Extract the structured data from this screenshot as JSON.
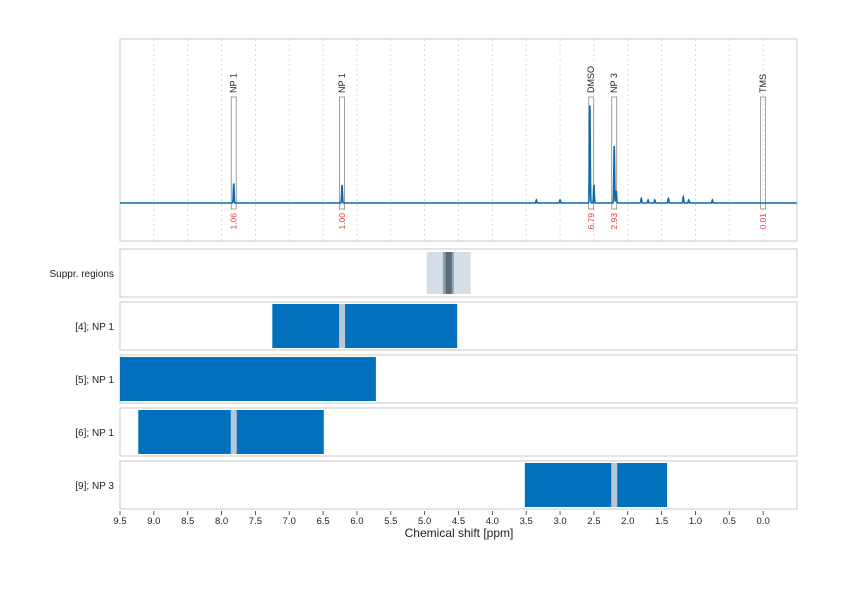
{
  "chart_data": {
    "type": "line",
    "title": "",
    "xlabel": "Chemical shift [ppm]",
    "ylabel": "",
    "xlim": [
      9.5,
      -0.5
    ],
    "x_ticks": [
      "9.5",
      "9.0",
      "8.5",
      "8.0",
      "7.5",
      "7.0",
      "6.5",
      "6.0",
      "5.5",
      "5.0",
      "4.5",
      "4.0",
      "3.5",
      "3.0",
      "2.5",
      "2.0",
      "1.5",
      "1.0",
      "0.5",
      "0.0"
    ],
    "grid": true,
    "spectrum": {
      "color": "#0b6aa9",
      "baseline": 0,
      "peaks": [
        {
          "x": 7.82,
          "height": 0.13
        },
        {
          "x": 6.22,
          "height": 0.12
        },
        {
          "x": 2.56,
          "height": 0.65
        },
        {
          "x": 2.5,
          "height": 0.12
        },
        {
          "x": 2.2,
          "height": 0.38
        },
        {
          "x": 2.17,
          "height": 0.08
        },
        {
          "x": 3.35,
          "height": 0.02
        },
        {
          "x": 3.0,
          "height": 0.02
        },
        {
          "x": 1.8,
          "height": 0.03
        },
        {
          "x": 1.7,
          "height": 0.02
        },
        {
          "x": 1.6,
          "height": 0.02
        },
        {
          "x": 1.4,
          "height": 0.03
        },
        {
          "x": 1.18,
          "height": 0.04
        },
        {
          "x": 1.1,
          "height": 0.02
        },
        {
          "x": 0.75,
          "height": 0.02
        }
      ]
    },
    "annotations": [
      {
        "label": "NP 1",
        "x": 7.82,
        "integral": "1.06"
      },
      {
        "label": "NP 1",
        "x": 6.22,
        "integral": "1.00"
      },
      {
        "label": "DMSO",
        "x": 2.54,
        "integral": "6.79"
      },
      {
        "label": "NP 3",
        "x": 2.2,
        "integral": "2.93"
      },
      {
        "label": "TMS",
        "x": 0.0,
        "integral": "0.01"
      }
    ],
    "annotation_color": "#e53935",
    "suppression": {
      "label": "Suppr. regions",
      "bands": [
        {
          "from": 4.97,
          "to": 4.32,
          "color": "#d5dee6"
        },
        {
          "from": 4.73,
          "to": 4.57,
          "color": "#8fa0ae"
        },
        {
          "from": 4.69,
          "to": 4.6,
          "color": "#5c6b78"
        }
      ]
    },
    "rows": [
      {
        "label": "[4]; NP 1",
        "from": 7.25,
        "to": 4.52,
        "marker": 6.22
      },
      {
        "label": "[5]; NP 1",
        "from": 9.5,
        "to": 5.72,
        "marker": null
      },
      {
        "label": "[6]; NP 1",
        "from": 9.23,
        "to": 6.49,
        "marker": 7.82
      },
      {
        "label": "[9]; NP 3",
        "from": 3.52,
        "to": 1.42,
        "marker": 2.2
      }
    ],
    "bar_color": "#0271bd",
    "marker_color": "#b6c8d6"
  }
}
